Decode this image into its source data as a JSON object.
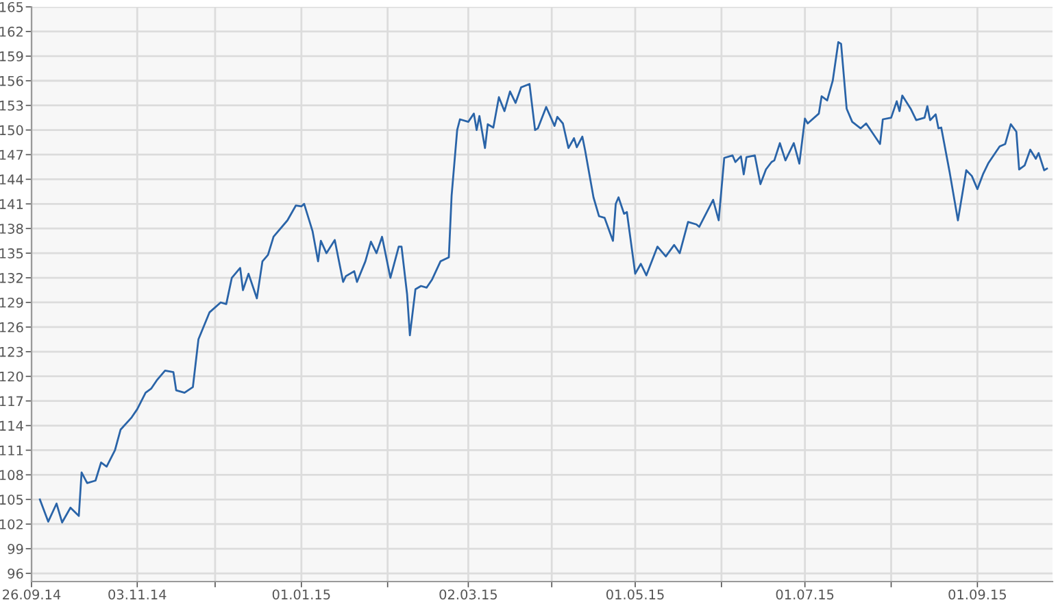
{
  "chart_data": {
    "type": "line",
    "x": [
      "2014-09-29",
      "2014-10-02",
      "2014-10-05",
      "2014-10-07",
      "2014-10-10",
      "2014-10-13",
      "2014-10-14",
      "2014-10-16",
      "2014-10-19",
      "2014-10-21",
      "2014-10-23",
      "2014-10-26",
      "2014-10-28",
      "2014-11-01",
      "2014-11-03",
      "2014-11-06",
      "2014-11-08",
      "2014-11-10",
      "2014-11-13",
      "2014-11-16",
      "2014-11-17",
      "2014-11-20",
      "2014-11-23",
      "2014-11-25",
      "2014-11-29",
      "2014-12-03",
      "2014-12-05",
      "2014-12-07",
      "2014-12-10",
      "2014-12-11",
      "2014-12-13",
      "2014-12-16",
      "2014-12-18",
      "2014-12-20",
      "2014-12-22",
      "2014-12-27",
      "2014-12-30",
      "2015-01-01",
      "2015-01-02",
      "2015-01-05",
      "2015-01-07",
      "2015-01-08",
      "2015-01-10",
      "2015-01-13",
      "2015-01-16",
      "2015-01-17",
      "2015-01-20",
      "2015-01-21",
      "2015-01-24",
      "2015-01-26",
      "2015-01-28",
      "2015-01-30",
      "2015-02-02",
      "2015-02-05",
      "2015-02-06",
      "2015-02-08",
      "2015-02-09",
      "2015-02-11",
      "2015-02-13",
      "2015-02-15",
      "2015-02-17",
      "2015-02-20",
      "2015-02-23",
      "2015-02-24",
      "2015-02-26",
      "2015-02-27",
      "2015-03-02",
      "2015-03-04",
      "2015-03-05",
      "2015-03-06",
      "2015-03-08",
      "2015-03-09",
      "2015-03-11",
      "2015-03-13",
      "2015-03-15",
      "2015-03-17",
      "2015-03-19",
      "2015-03-21",
      "2015-03-24",
      "2015-03-26",
      "2015-03-27",
      "2015-03-30",
      "2015-04-02",
      "2015-04-03",
      "2015-04-05",
      "2015-04-07",
      "2015-04-09",
      "2015-04-10",
      "2015-04-12",
      "2015-04-13",
      "2015-04-16",
      "2015-04-18",
      "2015-04-20",
      "2015-04-23",
      "2015-04-24",
      "2015-04-25",
      "2015-04-27",
      "2015-04-28",
      "2015-05-01",
      "2015-05-03",
      "2015-05-05",
      "2015-05-09",
      "2015-05-12",
      "2015-05-15",
      "2015-05-17",
      "2015-05-20",
      "2015-05-23",
      "2015-05-24",
      "2015-05-29",
      "2015-05-31",
      "2015-06-02",
      "2015-06-05",
      "2015-06-06",
      "2015-06-08",
      "2015-06-09",
      "2015-06-10",
      "2015-06-13",
      "2015-06-15",
      "2015-06-17",
      "2015-06-19",
      "2015-06-20",
      "2015-06-22",
      "2015-06-24",
      "2015-06-27",
      "2015-06-29",
      "2015-07-01",
      "2015-07-02",
      "2015-07-06",
      "2015-07-07",
      "2015-07-09",
      "2015-07-11",
      "2015-07-13",
      "2015-07-14",
      "2015-07-16",
      "2015-07-18",
      "2015-07-21",
      "2015-07-23",
      "2015-07-28",
      "2015-07-29",
      "2015-08-01",
      "2015-08-03",
      "2015-08-04",
      "2015-08-05",
      "2015-08-08",
      "2015-08-10",
      "2015-08-13",
      "2015-08-14",
      "2015-08-15",
      "2015-08-17",
      "2015-08-18",
      "2015-08-19",
      "2015-08-22",
      "2015-08-25",
      "2015-08-28",
      "2015-08-30",
      "2015-09-01",
      "2015-09-03",
      "2015-09-05",
      "2015-09-09",
      "2015-09-11",
      "2015-09-13",
      "2015-09-15",
      "2015-09-16",
      "2015-09-18",
      "2015-09-20",
      "2015-09-22",
      "2015-09-23",
      "2015-09-25",
      "2015-09-26"
    ],
    "series": [
      {
        "color": "#2a64a8",
        "values": [
          105,
          102.3,
          104.5,
          102.2,
          104,
          103,
          108.3,
          107,
          107.3,
          109.5,
          109,
          111,
          113.5,
          115,
          116,
          118,
          118.5,
          119.5,
          120.7,
          120.5,
          118.3,
          118,
          118.7,
          124.5,
          127.8,
          129,
          128.8,
          132,
          133.2,
          130.5,
          132.5,
          129.5,
          134,
          134.8,
          137,
          139,
          140.8,
          140.7,
          141,
          137.7,
          134,
          136.5,
          135,
          136.6,
          131.5,
          132.2,
          132.8,
          131.5,
          134,
          136.4,
          135,
          137,
          132,
          135.8,
          135.8,
          130,
          125,
          130.6,
          131,
          130.8,
          131.8,
          134,
          134.5,
          142,
          150,
          151.3,
          151,
          152,
          150,
          151.7,
          147.8,
          150.7,
          150.3,
          154,
          152.3,
          154.7,
          153.3,
          155.2,
          155.6,
          150,
          150.2,
          152.8,
          150.5,
          151.6,
          150.8,
          147.8,
          149,
          147.9,
          149.2,
          147.5,
          141.8,
          139.5,
          139.3,
          136.5,
          141,
          141.8,
          139.8,
          140,
          132.5,
          133.7,
          132.3,
          135.8,
          134.6,
          136,
          135,
          138.8,
          138.5,
          138.2,
          141.5,
          139,
          146.6,
          146.9,
          146.1,
          146.8,
          144.6,
          146.7,
          146.9,
          143.4,
          145.2,
          146.1,
          146.3,
          148.4,
          146.3,
          148.4,
          145.9,
          151.4,
          150.8,
          152,
          154.1,
          153.6,
          156,
          160.7,
          160.5,
          152.6,
          151,
          150.2,
          150.8,
          148.3,
          151.3,
          151.5,
          153.5,
          152.3,
          154.2,
          152.6,
          151.2,
          151.5,
          152.9,
          151.2,
          151.9,
          150.2,
          150.3,
          144.9,
          139,
          145.1,
          144.4,
          142.8,
          144.6,
          146,
          148,
          148.3,
          150.7,
          149.8,
          145.2,
          145.7,
          147.6,
          146.5,
          147.2,
          145.1,
          145.3
        ]
      }
    ],
    "xlim": [
      "2014-09-26",
      "2015-09-28"
    ],
    "xticks": [
      {
        "value": "2014-09-26",
        "label": "26.09.14"
      },
      {
        "value": "2014-11-03",
        "label": "03.11.14"
      },
      {
        "value": "2014-12-01",
        "label": null
      },
      {
        "value": "2015-01-01",
        "label": "01.01.15"
      },
      {
        "value": "2015-02-01",
        "label": null
      },
      {
        "value": "2015-03-02",
        "label": "02.03.15"
      },
      {
        "value": "2015-04-01",
        "label": null
      },
      {
        "value": "2015-05-01",
        "label": "01.05.15"
      },
      {
        "value": "2015-06-01",
        "label": null
      },
      {
        "value": "2015-07-01",
        "label": "01.07.15"
      },
      {
        "value": "2015-08-01",
        "label": null
      },
      {
        "value": "2015-09-01",
        "label": "01.09.15"
      }
    ],
    "ylim": [
      95,
      165
    ],
    "yticks": [
      96,
      99,
      102,
      105,
      108,
      111,
      114,
      117,
      120,
      123,
      126,
      129,
      132,
      135,
      138,
      141,
      144,
      147,
      150,
      153,
      156,
      159,
      162,
      165
    ],
    "grid": true,
    "marker": "none",
    "line_style": "solid"
  }
}
